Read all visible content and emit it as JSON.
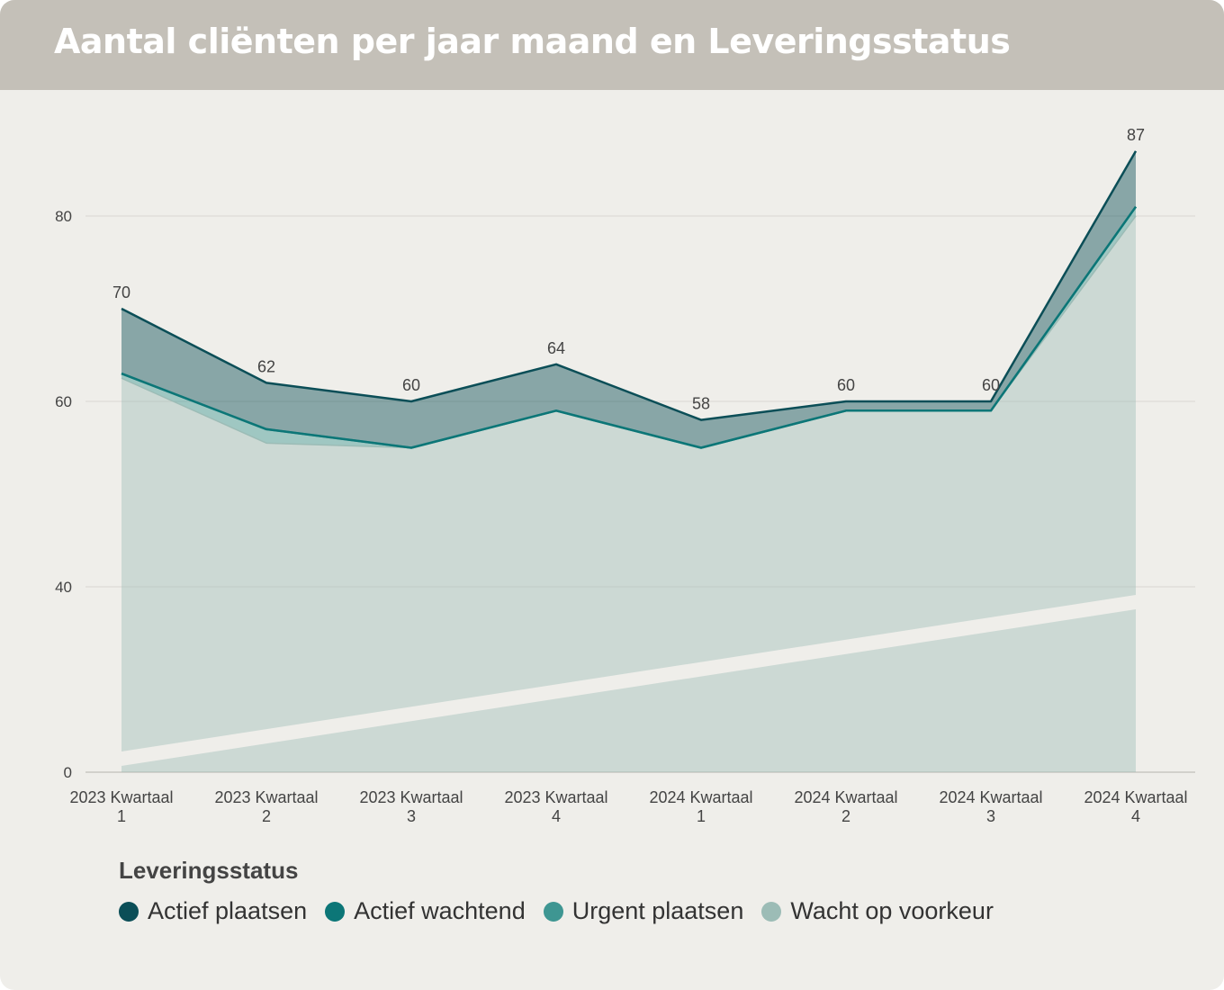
{
  "header": {
    "title": "Aantal cliënten per jaar maand en Leveringsstatus"
  },
  "chart_data": {
    "type": "area",
    "stacked": true,
    "title": "Aantal cliënten per jaar maand en Leveringsstatus",
    "categories": [
      [
        "2023 Kwartaal",
        "1"
      ],
      [
        "2023 Kwartaal",
        "2"
      ],
      [
        "2023 Kwartaal",
        "3"
      ],
      [
        "2023 Kwartaal",
        "4"
      ],
      [
        "2024 Kwartaal",
        "1"
      ],
      [
        "2024 Kwartaal",
        "2"
      ],
      [
        "2024 Kwartaal",
        "3"
      ],
      [
        "2024 Kwartaal",
        "4"
      ]
    ],
    "series": [
      {
        "name": "Wacht op voorkeur",
        "color": "#9cbcb6",
        "values": [
          62.5,
          55.5,
          55,
          59,
          55,
          59,
          59,
          80
        ]
      },
      {
        "name": "Urgent plaatsen",
        "color": "#3e9692",
        "values": [
          0.5,
          1.5,
          0,
          0,
          0,
          0,
          0,
          1
        ]
      },
      {
        "name": "Actief wachtend",
        "color": "#0c7677",
        "values": [
          0,
          0,
          0,
          0,
          0,
          0,
          0,
          0
        ]
      },
      {
        "name": "Actief plaatsen",
        "color": "#0b4e57",
        "values": [
          7,
          5,
          5,
          5,
          3,
          1,
          1,
          6
        ]
      }
    ],
    "totals": [
      70,
      62,
      60,
      64,
      58,
      60,
      60,
      87
    ],
    "total_labels": [
      "70",
      "62",
      "60",
      "64",
      "58",
      "60",
      "60",
      "87"
    ],
    "y_ticks": [
      0,
      40,
      60,
      80
    ],
    "y_tick_labels": [
      "0",
      "40",
      "60",
      "80"
    ],
    "ylim": [
      0,
      90
    ],
    "axis_break": true,
    "grid": true,
    "legend": {
      "title": "Leveringsstatus",
      "placement": "bottom-left",
      "items": [
        {
          "label": "Actief plaatsen",
          "color": "#0b4e57"
        },
        {
          "label": "Actief wachtend",
          "color": "#0c7677"
        },
        {
          "label": "Urgent plaatsen",
          "color": "#3e9692"
        },
        {
          "label": "Wacht op voorkeur",
          "color": "#9cbcb6"
        }
      ]
    }
  }
}
